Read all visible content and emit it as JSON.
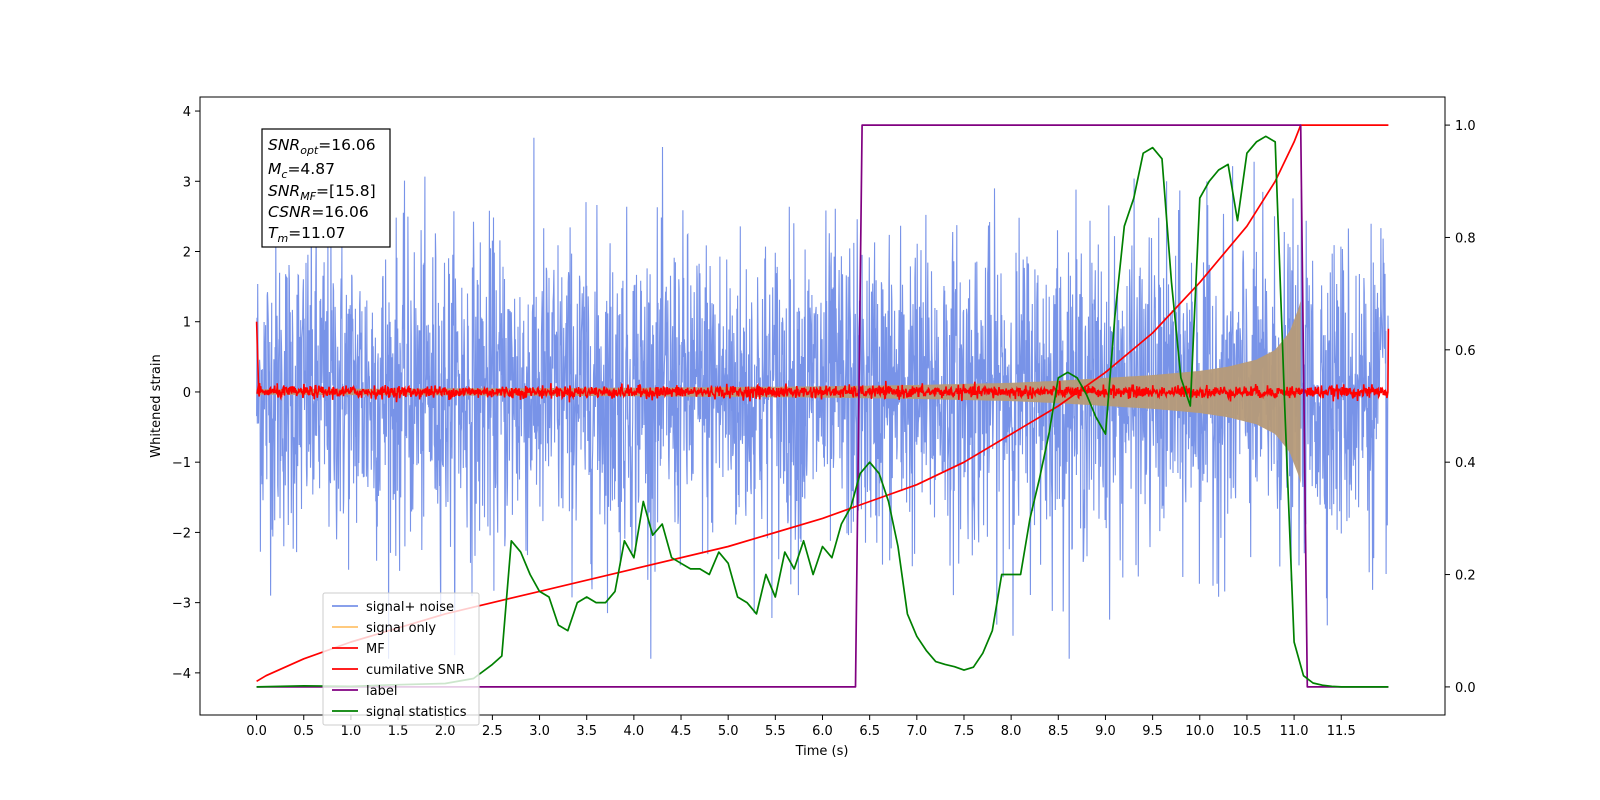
{
  "chart_data": {
    "type": "line",
    "title": "",
    "xlabel": "Time (s)",
    "ylabel": "Whitened strain",
    "y2label": "",
    "xlim": [
      -0.6,
      12.6
    ],
    "ylim": [
      -4.6,
      4.2
    ],
    "y2lim": [
      -0.05,
      1.05
    ],
    "xticks": [
      "0.0",
      "0.5",
      "1.0",
      "1.5",
      "2.0",
      "2.5",
      "3.0",
      "3.5",
      "4.0",
      "4.5",
      "5.0",
      "5.5",
      "6.0",
      "6.5",
      "7.0",
      "7.5",
      "8.0",
      "8.5",
      "9.0",
      "9.5",
      "10.0",
      "10.5",
      "11.0",
      "11.5"
    ],
    "yticks": [
      "−4",
      "−3",
      "−2",
      "−1",
      "0",
      "1",
      "2",
      "3",
      "4"
    ],
    "y2ticks": [
      "0.0",
      "0.2",
      "0.4",
      "0.6",
      "0.8",
      "1.0"
    ],
    "legend_position": "lower-left",
    "annotation": {
      "snr_opt": {
        "base": "SNR",
        "sub": "opt",
        "value": "=16.06"
      },
      "mc": {
        "base": "M",
        "sub": "c",
        "value": "=4.87"
      },
      "snr_mf": {
        "base": "SNR",
        "sub": "MF",
        "value": "=[15.8]"
      },
      "csnr": {
        "base": "CSNR",
        "value": "=16.06"
      },
      "tm": {
        "base": "T",
        "sub": "m",
        "value": "=11.07"
      }
    },
    "series": [
      {
        "name": "signal+ noise",
        "color": "#7893e8",
        "axis": "left",
        "style": "noise",
        "amplitude_typical": 1.3,
        "amplitude_peak": 3.8,
        "range": [
          0.0,
          12.0
        ]
      },
      {
        "name": "signal only",
        "color": "#ffc36b",
        "axis": "left",
        "style": "chirp-envelope",
        "envelope": {
          "x": [
            0.0,
            2.0,
            4.0,
            6.0,
            7.0,
            8.0,
            8.5,
            9.0,
            9.5,
            10.0,
            10.3,
            10.6,
            10.8,
            10.95,
            11.05,
            11.07
          ],
          "y": [
            0.04,
            0.05,
            0.06,
            0.08,
            0.1,
            0.13,
            0.16,
            0.2,
            0.24,
            0.3,
            0.36,
            0.46,
            0.6,
            0.85,
            1.2,
            1.3
          ]
        }
      },
      {
        "name": "MF",
        "color": "#ff0000",
        "axis": "left",
        "style": "noise",
        "amplitude_typical": 0.08,
        "edge_values": [
          1.0,
          0.9
        ],
        "range": [
          0.0,
          12.0
        ]
      },
      {
        "name": "cumilative SNR",
        "color": "#ff0000",
        "axis": "right",
        "x": [
          0.0,
          0.1,
          0.5,
          1.0,
          2.0,
          3.0,
          4.0,
          5.0,
          6.0,
          6.5,
          7.0,
          7.5,
          8.0,
          8.5,
          9.0,
          9.5,
          10.0,
          10.5,
          10.8,
          11.0,
          11.07,
          12.0
        ],
        "y": [
          0.01,
          0.02,
          0.05,
          0.08,
          0.13,
          0.17,
          0.21,
          0.25,
          0.3,
          0.33,
          0.36,
          0.4,
          0.45,
          0.5,
          0.56,
          0.63,
          0.72,
          0.82,
          0.9,
          0.97,
          1.0,
          1.0
        ]
      },
      {
        "name": "label",
        "color": "#800080",
        "axis": "right",
        "x": [
          0.0,
          6.35,
          6.42,
          11.07,
          11.14,
          12.0
        ],
        "y": [
          0.0,
          0.0,
          1.0,
          1.0,
          0.0,
          0.0
        ]
      },
      {
        "name": "signal statistics",
        "color": "#008000",
        "axis": "right",
        "x": [
          0.0,
          0.5,
          1.0,
          1.5,
          2.0,
          2.3,
          2.5,
          2.6,
          2.7,
          2.8,
          2.9,
          3.0,
          3.1,
          3.2,
          3.3,
          3.4,
          3.5,
          3.6,
          3.7,
          3.8,
          3.9,
          4.0,
          4.1,
          4.2,
          4.3,
          4.4,
          4.5,
          4.6,
          4.7,
          4.8,
          4.9,
          5.0,
          5.1,
          5.2,
          5.3,
          5.4,
          5.5,
          5.6,
          5.7,
          5.8,
          5.9,
          6.0,
          6.1,
          6.2,
          6.3,
          6.4,
          6.5,
          6.6,
          6.7,
          6.8,
          6.9,
          7.0,
          7.1,
          7.2,
          7.3,
          7.4,
          7.5,
          7.6,
          7.7,
          7.8,
          7.9,
          8.0,
          8.1,
          8.2,
          8.3,
          8.4,
          8.5,
          8.6,
          8.7,
          8.8,
          8.9,
          9.0,
          9.1,
          9.2,
          9.3,
          9.4,
          9.5,
          9.6,
          9.7,
          9.8,
          9.9,
          10.0,
          10.1,
          10.2,
          10.3,
          10.4,
          10.5,
          10.6,
          10.7,
          10.8,
          10.9,
          11.0,
          11.1,
          11.2,
          11.3,
          11.4,
          11.5,
          11.7,
          12.0
        ],
        "y": [
          0.0,
          0.002,
          0.001,
          0.004,
          0.006,
          0.015,
          0.04,
          0.055,
          0.26,
          0.24,
          0.2,
          0.17,
          0.16,
          0.11,
          0.1,
          0.15,
          0.16,
          0.15,
          0.15,
          0.17,
          0.26,
          0.23,
          0.33,
          0.27,
          0.29,
          0.23,
          0.22,
          0.21,
          0.21,
          0.2,
          0.24,
          0.22,
          0.16,
          0.15,
          0.13,
          0.2,
          0.16,
          0.24,
          0.21,
          0.26,
          0.2,
          0.25,
          0.23,
          0.29,
          0.32,
          0.38,
          0.4,
          0.38,
          0.33,
          0.25,
          0.13,
          0.09,
          0.065,
          0.045,
          0.04,
          0.036,
          0.03,
          0.035,
          0.06,
          0.1,
          0.2,
          0.2,
          0.2,
          0.3,
          0.37,
          0.45,
          0.55,
          0.56,
          0.55,
          0.52,
          0.48,
          0.45,
          0.66,
          0.82,
          0.87,
          0.95,
          0.96,
          0.94,
          0.72,
          0.55,
          0.5,
          0.87,
          0.9,
          0.92,
          0.93,
          0.83,
          0.95,
          0.97,
          0.98,
          0.97,
          0.5,
          0.08,
          0.02,
          0.007,
          0.003,
          0.001,
          0.0,
          0.0,
          0.0
        ]
      }
    ]
  }
}
